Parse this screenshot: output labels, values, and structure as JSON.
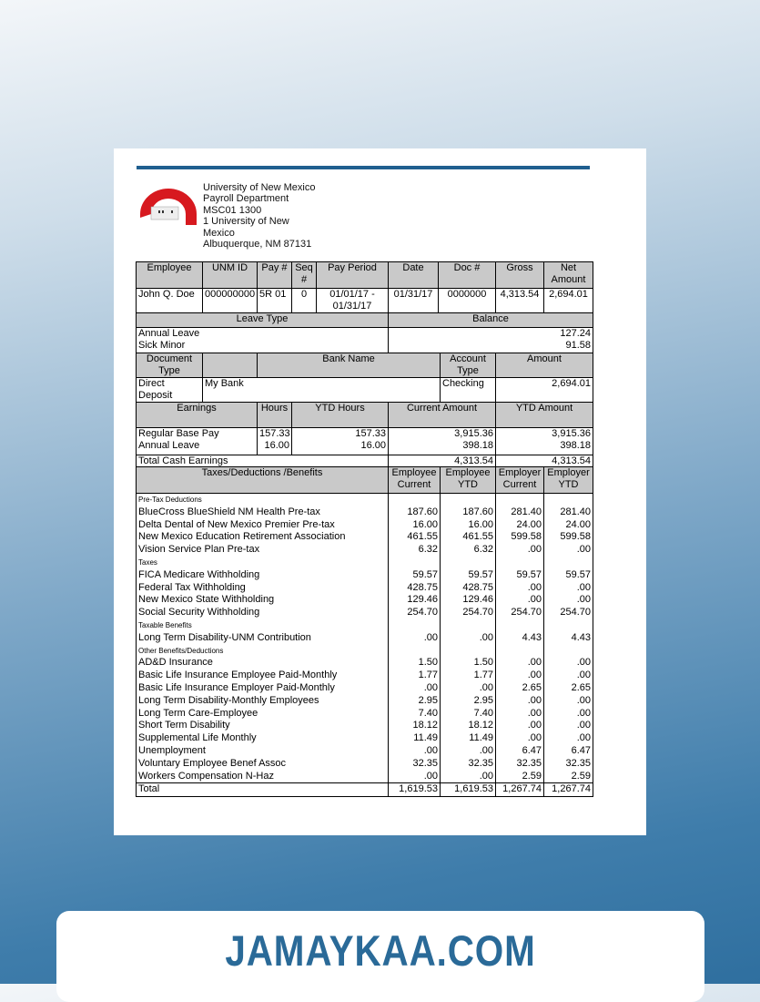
{
  "employer": {
    "lines": [
      "University of New Mexico",
      "Payroll Department",
      "MSC01 1300",
      "1 University of New",
      "Mexico",
      "Albuquerque, NM 87131"
    ]
  },
  "summary": {
    "headers": [
      "Employee",
      "UNM ID",
      "Pay #",
      "Seq #",
      "Pay Period",
      "Date",
      "Doc #",
      "Gross",
      "Net Amount"
    ],
    "values": [
      "John Q. Doe",
      "000000000",
      "5R 01",
      "0",
      "01/01/17 - 01/31/17",
      "01/31/17",
      "0000000",
      "4,313.54",
      "2,694.01"
    ]
  },
  "leave": {
    "headers": [
      "Leave Type",
      "Balance"
    ],
    "rows": [
      [
        "Annual Leave",
        "127.24"
      ],
      [
        "Sick Minor",
        "91.58"
      ]
    ]
  },
  "bank": {
    "headers": [
      "Document Type",
      "",
      "Bank Name",
      "Account Type",
      "Amount"
    ],
    "values": [
      "Direct Deposit",
      "My Bank",
      "Checking",
      "2,694.01"
    ]
  },
  "earnings": {
    "headers": [
      "Earnings",
      "Hours",
      "YTD Hours",
      "Current Amount",
      "YTD Amount"
    ],
    "rows": [
      [
        "Regular Base Pay",
        "157.33",
        "157.33",
        "3,915.36",
        "3,915.36"
      ],
      [
        "Annual Leave",
        "16.00",
        "16.00",
        "398.18",
        "398.18"
      ]
    ],
    "total": [
      "Total Cash Earnings",
      "4,313.54",
      "4,313.54"
    ]
  },
  "deductions": {
    "headers": [
      "Taxes/Deductions /Benefits",
      "Employee Current",
      "Employee YTD",
      "Employer Current",
      "Employer YTD"
    ],
    "groups": [
      {
        "label": "Pre-Tax Deductions",
        "rows": [
          [
            "BlueCross BlueShield NM Health Pre-tax",
            "187.60",
            "187.60",
            "281.40",
            "281.40"
          ],
          [
            "Delta Dental of New Mexico Premier Pre-tax",
            "16.00",
            "16.00",
            "24.00",
            "24.00"
          ],
          [
            "New Mexico Education Retirement Association",
            "461.55",
            "461.55",
            "599.58",
            "599.58"
          ],
          [
            "Vision Service Plan Pre-tax",
            "6.32",
            "6.32",
            ".00",
            ".00"
          ]
        ]
      },
      {
        "label": "Taxes",
        "rows": [
          [
            "FICA Medicare Withholding",
            "59.57",
            "59.57",
            "59.57",
            "59.57"
          ],
          [
            "Federal Tax Withholding",
            "428.75",
            "428.75",
            ".00",
            ".00"
          ],
          [
            "New Mexico State Withholding",
            "129.46",
            "129.46",
            ".00",
            ".00"
          ],
          [
            "Social Security Withholding",
            "254.70",
            "254.70",
            "254.70",
            "254.70"
          ]
        ]
      },
      {
        "label": "Taxable Benefits",
        "rows": [
          [
            "Long Term Disability-UNM Contribution",
            ".00",
            ".00",
            "4.43",
            "4.43"
          ]
        ]
      },
      {
        "label": "Other Benefits/Deductions",
        "rows": [
          [
            "AD&D Insurance",
            "1.50",
            "1.50",
            ".00",
            ".00"
          ],
          [
            "Basic Life Insurance Employee Paid-Monthly",
            "1.77",
            "1.77",
            ".00",
            ".00"
          ],
          [
            "Basic Life Insurance Employer Paid-Monthly",
            ".00",
            ".00",
            "2.65",
            "2.65"
          ],
          [
            "Long Term Disability-Monthly Employees",
            "2.95",
            "2.95",
            ".00",
            ".00"
          ],
          [
            "Long Term Care-Employee",
            "7.40",
            "7.40",
            ".00",
            ".00"
          ],
          [
            "Short Term Disability",
            "18.12",
            "18.12",
            ".00",
            ".00"
          ],
          [
            "Supplemental Life Monthly",
            "11.49",
            "11.49",
            ".00",
            ".00"
          ],
          [
            "Unemployment",
            ".00",
            ".00",
            "6.47",
            "6.47"
          ],
          [
            "Voluntary Employee Benef Assoc",
            "32.35",
            "32.35",
            "32.35",
            "32.35"
          ],
          [
            "Workers Compensation N-Haz",
            ".00",
            ".00",
            "2.59",
            "2.59"
          ]
        ]
      }
    ],
    "total": [
      "Total",
      "1,619.53",
      "1,619.53",
      "1,267.74",
      "1,267.74"
    ]
  },
  "footer": {
    "brand": "JAMAYKAA.COM"
  },
  "colors": {
    "rule": "#1f5f8f",
    "logo_red": "#d7191f",
    "brand": "#2a6a98",
    "header_gray": "#c9c9c9"
  }
}
